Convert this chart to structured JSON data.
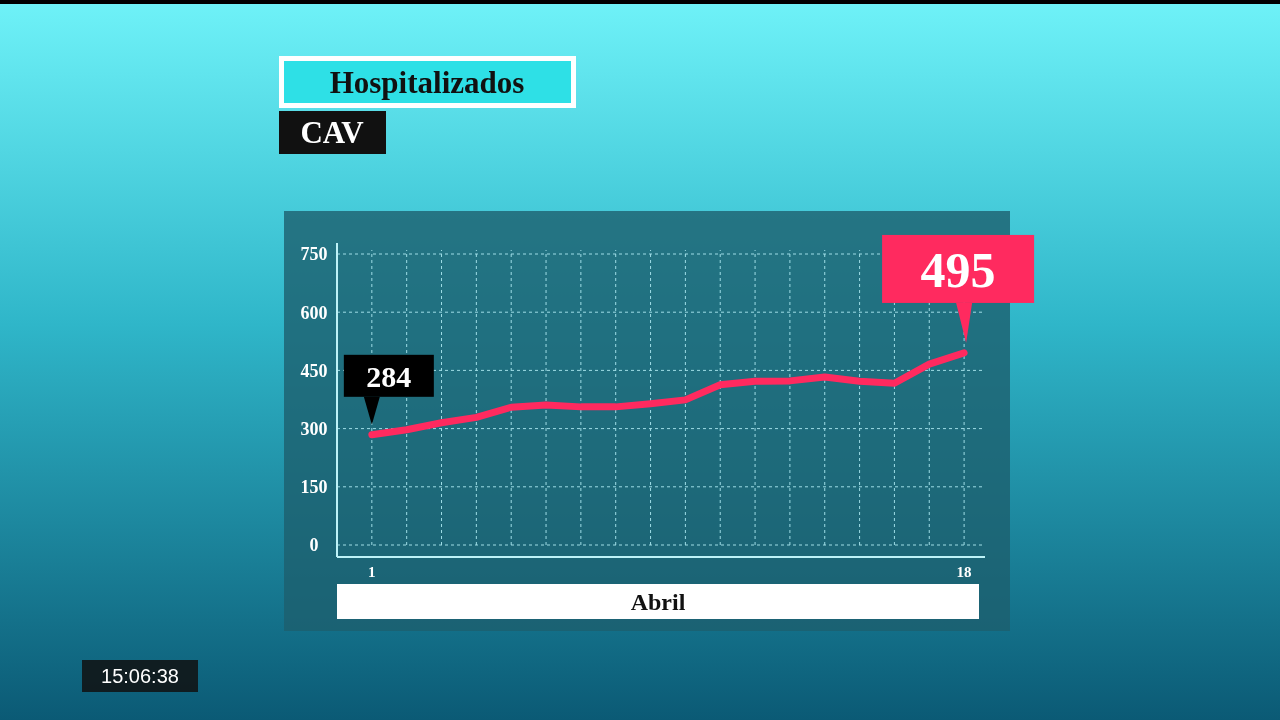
{
  "chart_data": {
    "type": "line",
    "title": "Hospitalizados",
    "subtitle": "CAV",
    "xlabel": "Abril",
    "x": [
      1,
      2,
      3,
      4,
      5,
      6,
      7,
      8,
      9,
      10,
      11,
      12,
      13,
      14,
      15,
      16,
      17,
      18
    ],
    "series": [
      {
        "color": "#ff2a5f",
        "values": [
          284,
          297,
          315,
          329,
          355,
          361,
          356,
          356,
          364,
          374,
          413,
          422,
          423,
          433,
          422,
          417,
          466,
          495
        ],
        "value_labels": [
          "284",
          null,
          null,
          null,
          null,
          null,
          null,
          null,
          null,
          null,
          null,
          null,
          null,
          null,
          null,
          null,
          null,
          "495"
        ]
      }
    ],
    "xlim": [
      0,
      18.6
    ],
    "ylim": [
      0,
      750
    ],
    "xticks": [
      1,
      {
        "value": 2,
        "label": null
      },
      {
        "value": 3,
        "label": null
      },
      {
        "value": 4,
        "label": null
      },
      {
        "value": 5,
        "label": null
      },
      {
        "value": 6,
        "label": null
      },
      {
        "value": 7,
        "label": null
      },
      {
        "value": 8,
        "label": null
      },
      {
        "value": 9,
        "label": null
      },
      {
        "value": 10,
        "label": null
      },
      {
        "value": 11,
        "label": null
      },
      {
        "value": 12,
        "label": null
      },
      {
        "value": 13,
        "label": null
      },
      {
        "value": 14,
        "label": null
      },
      {
        "value": 15,
        "label": null
      },
      {
        "value": 16,
        "label": null
      },
      {
        "value": 17,
        "label": null
      },
      18
    ],
    "yticks": [
      0,
      150,
      300,
      450,
      600,
      750
    ],
    "grid": true,
    "marker": "none",
    "line_style": "solid",
    "annotations": [
      "15:06:38"
    ]
  }
}
